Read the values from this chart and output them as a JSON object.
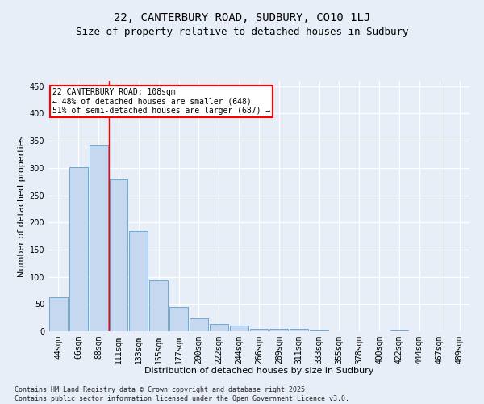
{
  "title1": "22, CANTERBURY ROAD, SUDBURY, CO10 1LJ",
  "title2": "Size of property relative to detached houses in Sudbury",
  "xlabel": "Distribution of detached houses by size in Sudbury",
  "ylabel": "Number of detached properties",
  "categories": [
    "44sqm",
    "66sqm",
    "88sqm",
    "111sqm",
    "133sqm",
    "155sqm",
    "177sqm",
    "200sqm",
    "222sqm",
    "244sqm",
    "266sqm",
    "289sqm",
    "311sqm",
    "333sqm",
    "355sqm",
    "378sqm",
    "400sqm",
    "422sqm",
    "444sqm",
    "467sqm",
    "489sqm"
  ],
  "values": [
    63,
    301,
    341,
    279,
    184,
    93,
    45,
    24,
    14,
    10,
    5,
    5,
    4,
    1,
    0,
    0,
    0,
    1,
    0,
    0,
    0
  ],
  "bar_color": "#c5d8f0",
  "bar_edge_color": "#6aaad4",
  "vline_x": 2.5,
  "vline_color": "red",
  "annotation_text": "22 CANTERBURY ROAD: 108sqm\n← 48% of detached houses are smaller (648)\n51% of semi-detached houses are larger (687) →",
  "annotation_box_color": "white",
  "annotation_box_edge_color": "red",
  "ylim": [
    0,
    460
  ],
  "yticks": [
    0,
    50,
    100,
    150,
    200,
    250,
    300,
    350,
    400,
    450
  ],
  "footnote": "Contains HM Land Registry data © Crown copyright and database right 2025.\nContains public sector information licensed under the Open Government Licence v3.0.",
  "bg_color": "#e8eef8",
  "grid_color": "white",
  "title_fontsize": 10,
  "subtitle_fontsize": 9,
  "axis_label_fontsize": 8,
  "tick_fontsize": 7,
  "annotation_fontsize": 7,
  "footnote_fontsize": 6
}
